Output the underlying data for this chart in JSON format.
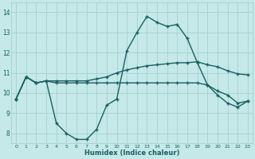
{
  "xlabel": "Humidex (Indice chaleur)",
  "ylabel": "",
  "xlim": [
    -0.5,
    23.5
  ],
  "ylim": [
    7.5,
    14.5
  ],
  "background_color": "#c5e8e8",
  "grid_color": "#9ecece",
  "line_color": "#1a6060",
  "line_width": 1.0,
  "marker": "+",
  "markersize": 3,
  "markeredgewidth": 1.0,
  "xtick_labels": [
    "0",
    "1",
    "2",
    "3",
    "4",
    "5",
    "6",
    "7",
    "8",
    "9",
    "10",
    "11",
    "12",
    "13",
    "14",
    "15",
    "16",
    "17",
    "18",
    "19",
    "20",
    "21",
    "22",
    "23"
  ],
  "ytick_labels": [
    "8",
    "9",
    "10",
    "11",
    "12",
    "13",
    "14"
  ],
  "lines": [
    [
      9.7,
      10.8,
      10.5,
      10.6,
      8.5,
      8.0,
      7.7,
      7.7,
      8.2,
      9.4,
      9.7,
      12.1,
      13.0,
      13.8,
      13.5,
      13.3,
      13.4,
      12.7,
      11.5,
      10.4,
      9.9,
      9.5,
      9.3,
      9.6
    ],
    [
      9.7,
      10.8,
      10.5,
      10.6,
      10.5,
      10.5,
      10.5,
      10.5,
      10.5,
      10.5,
      10.5,
      10.5,
      10.5,
      10.5,
      10.5,
      10.5,
      10.5,
      10.5,
      10.5,
      10.4,
      10.1,
      9.9,
      9.5,
      9.6
    ],
    [
      9.7,
      10.8,
      10.5,
      10.6,
      10.6,
      10.6,
      10.6,
      10.6,
      10.7,
      10.8,
      11.0,
      11.15,
      11.25,
      11.35,
      11.4,
      11.45,
      11.5,
      11.5,
      11.55,
      11.4,
      11.3,
      11.1,
      10.95,
      10.9
    ]
  ]
}
